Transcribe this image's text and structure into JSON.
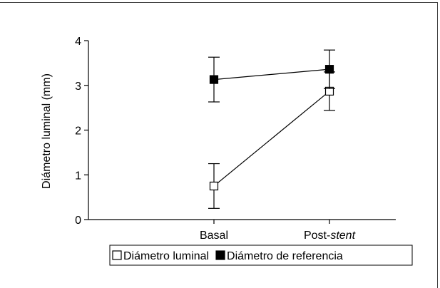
{
  "chart_data": {
    "type": "line",
    "title": "",
    "xlabel": "",
    "ylabel": "Diámetro luminal (mm)",
    "categories": [
      {
        "prefix": "Basal",
        "italic": ""
      },
      {
        "prefix": "Post-",
        "italic": "stent"
      }
    ],
    "ylim": [
      0,
      4
    ],
    "yticks": [
      0,
      1,
      2,
      3,
      4
    ],
    "grid": false,
    "legend_placement": "bottom",
    "series": [
      {
        "name": "Diámetro luminal",
        "marker": "open-square",
        "color": "#000000",
        "values": [
          0.75,
          2.87
        ],
        "error": [
          0.5,
          0.43
        ]
      },
      {
        "name": "Diámetro de referencia",
        "marker": "filled-square",
        "color": "#000000",
        "values": [
          3.13,
          3.36
        ],
        "error": [
          0.5,
          0.43
        ]
      }
    ]
  }
}
